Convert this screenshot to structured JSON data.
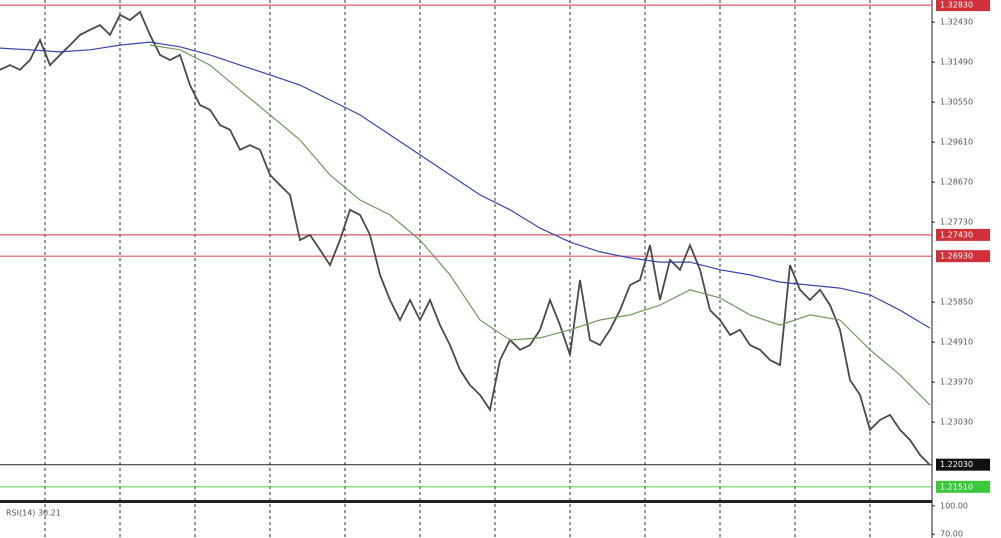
{
  "chart_data": [
    {
      "type": "line",
      "ylim": [
        1.212,
        1.3295
      ],
      "yticks": [
        {
          "value": 1.3243,
          "label": "1.32430"
        },
        {
          "value": 1.3149,
          "label": "1.31490"
        },
        {
          "value": 1.3055,
          "label": "1.30550"
        },
        {
          "value": 1.2961,
          "label": "1.29610"
        },
        {
          "value": 1.2867,
          "label": "1.28670"
        },
        {
          "value": 1.2773,
          "label": "1.27730"
        },
        {
          "value": 1.2585,
          "label": "1.25850"
        },
        {
          "value": 1.2491,
          "label": "1.24910"
        },
        {
          "value": 1.2397,
          "label": "1.23970"
        },
        {
          "value": 1.2303,
          "label": "1.23030"
        }
      ],
      "levels": [
        {
          "value": 1.3283,
          "label": "1.32830",
          "color": "#d0303a"
        },
        {
          "value": 1.2743,
          "label": "1.27430",
          "color": "#d0303a"
        },
        {
          "value": 1.2693,
          "label": "1.26930",
          "color": "#d0303a"
        },
        {
          "value": 1.2203,
          "label": "1.22030",
          "color": "#111111"
        },
        {
          "value": 1.2151,
          "label": "1.21510",
          "color": "#3cc83c"
        }
      ],
      "series": [
        {
          "color": "#4a4a4a",
          "values": [
            1.3131,
            1.3142,
            1.3131,
            1.3154,
            1.3201,
            1.3142,
            1.3166,
            1.3189,
            1.3213,
            1.3225,
            1.3236,
            1.3213,
            1.326,
            1.3248,
            1.3267,
            1.3213,
            1.3166,
            1.3154,
            1.3166,
            1.3095,
            1.3048,
            1.3037,
            1.3001,
            1.299,
            1.2943,
            1.2954,
            1.2943,
            1.2884,
            1.286,
            1.2837,
            1.2731,
            1.2743,
            1.2708,
            1.2672,
            1.2731,
            1.2802,
            1.279,
            1.2743,
            1.2649,
            1.259,
            1.2543,
            1.259,
            1.2543,
            1.259,
            1.2531,
            1.2484,
            1.2426,
            1.239,
            1.2367,
            1.2332,
            1.2449,
            1.2496,
            1.2473,
            1.2484,
            1.252,
            1.259,
            1.2531,
            1.2461,
            1.2637,
            1.2496,
            1.2484,
            1.252,
            1.2566,
            1.2625,
            1.2637,
            1.2719,
            1.259,
            1.2684,
            1.2661,
            1.2719,
            1.2661,
            1.2566,
            1.2543,
            1.2508,
            1.252,
            1.2484,
            1.2473,
            1.2449,
            1.2437,
            1.2672,
            1.2614,
            1.259,
            1.2614,
            1.2578,
            1.252,
            1.2402,
            1.2367,
            1.2285,
            1.2308,
            1.232,
            1.2285,
            1.2261,
            1.2226,
            1.2202
          ]
        },
        {
          "color": "#3a46a8",
          "values": [
            1.3182,
            1.3178,
            1.3173,
            1.3178,
            1.3189,
            1.3196,
            1.3185,
            1.3166,
            1.3142,
            1.3119,
            1.3095,
            1.306,
            1.3025,
            1.2978,
            1.2931,
            1.2884,
            1.2837,
            1.2802,
            1.2759,
            1.2726,
            1.2703,
            1.2689,
            1.2679,
            1.2679,
            1.2661,
            1.2649,
            1.2632,
            1.2625,
            1.2618,
            1.2602,
            1.2566,
            1.2524
          ]
        },
        {
          "color": "#6f9a5e",
          "values": [
            null,
            null,
            null,
            null,
            null,
            1.3189,
            1.3178,
            1.3142,
            1.3083,
            1.3025,
            1.2966,
            1.2884,
            1.2825,
            1.279,
            1.2731,
            1.2649,
            1.2543,
            1.2496,
            1.2501,
            1.252,
            1.2543,
            1.2555,
            1.2578,
            1.2614,
            1.2595,
            1.2555,
            1.2531,
            1.2555,
            1.2543,
            1.2473,
            1.2414,
            1.2343
          ]
        }
      ]
    },
    {
      "type": "indicator",
      "title": "RSI(14) 30.21",
      "ylim": [
        66,
        103
      ],
      "yticks": [
        {
          "value": 100,
          "label": "100.00"
        },
        {
          "value": 70,
          "label": "70.00"
        }
      ]
    }
  ]
}
